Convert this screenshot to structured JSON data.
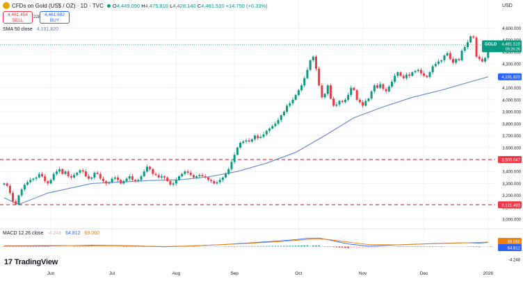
{
  "header": {
    "title": "CFDs on Gold (US$ / OZ) · 1D · TVC",
    "ohlc": {
      "o_label": "O",
      "o": "4,449.090",
      "h_label": "H",
      "h": "4,475.810",
      "l_label": "L",
      "l": "4,428.140",
      "c_label": "C",
      "c": "4,461.510",
      "change": "+14.750 (+0.33%)"
    },
    "sell_price": "4,461.454",
    "sell_label": "SELL",
    "spread": "228",
    "buy_price": "4,461.682",
    "buy_label": "BUY",
    "currency": "USD",
    "brand": "TradingView"
  },
  "indicators": {
    "sma_label": "SMA 50 close",
    "sma_value": "4,191.820",
    "macd_label": "MACD 12 26 close",
    "macd_hist": "-4.248",
    "macd_line": "64.812",
    "macd_signal": "69.060"
  },
  "colors": {
    "up": "#089981",
    "down": "#f23645",
    "sma": "#5b84d4",
    "macd": "#2962ff",
    "signal": "#f57c00",
    "hline": "#f23645"
  },
  "chart_data": {
    "type": "candlestick",
    "symbol": "GOLD",
    "last_price": "4,461.510",
    "countdown": "09:26:26",
    "ylim": [
      2920,
      4660
    ],
    "y_ticks": [
      3000,
      3100,
      3200,
      3300,
      3400,
      3500,
      3600,
      3700,
      3800,
      3900,
      4000,
      4100,
      4200,
      4300,
      4400,
      4500,
      4600
    ],
    "y_tick_labels": [
      "3,000.000",
      "3,100.000",
      "3,200.000",
      "3,300.000",
      "3,400.000",
      "3,500.000",
      "3,600.000",
      "3,700.000",
      "3,800.000",
      "3,900.000",
      "4,000.000",
      "4,100.000",
      "4,200.000",
      "4,300.000",
      "4,400.000",
      "4,500.000",
      "4,600.000"
    ],
    "x_labels": [
      "Jun",
      "Jul",
      "Aug",
      "Sep",
      "Oct",
      "Nov",
      "Dec",
      "2026"
    ],
    "x_label_index": [
      16,
      37,
      59,
      79,
      101,
      123,
      144,
      166
    ],
    "horizontal_lines": [
      {
        "value": 3500.047,
        "label": "3,500.047"
      },
      {
        "value": 3121.493,
        "label": "3,121.493"
      }
    ],
    "sma50": {
      "name": "SMA 50 close",
      "last_label": "4,191.820",
      "points": [
        [
          0,
          3180
        ],
        [
          5,
          3125
        ],
        [
          15,
          3220
        ],
        [
          30,
          3300
        ],
        [
          50,
          3325
        ],
        [
          60,
          3330
        ],
        [
          70,
          3355
        ],
        [
          80,
          3400
        ],
        [
          90,
          3470
        ],
        [
          100,
          3560
        ],
        [
          110,
          3700
        ],
        [
          120,
          3850
        ],
        [
          130,
          3940
        ],
        [
          140,
          4020
        ],
        [
          150,
          4080
        ],
        [
          160,
          4150
        ],
        [
          166,
          4191.82
        ]
      ]
    },
    "closes": [
      3300,
      3280,
      3220,
      3150,
      3125,
      3200,
      3250,
      3290,
      3310,
      3330,
      3340,
      3350,
      3380,
      3360,
      3320,
      3300,
      3330,
      3380,
      3400,
      3420,
      3380,
      3400,
      3360,
      3350,
      3370,
      3390,
      3410,
      3400,
      3360,
      3340,
      3350,
      3390,
      3380,
      3340,
      3320,
      3300,
      3310,
      3340,
      3350,
      3330,
      3300,
      3320,
      3340,
      3360,
      3330,
      3320,
      3330,
      3360,
      3400,
      3440,
      3420,
      3380,
      3370,
      3350,
      3360,
      3350,
      3320,
      3290,
      3300,
      3330,
      3360,
      3380,
      3400,
      3390,
      3370,
      3350,
      3360,
      3370,
      3360,
      3350,
      3330,
      3320,
      3300,
      3310,
      3330,
      3350,
      3380,
      3420,
      3480,
      3540,
      3600,
      3640,
      3650,
      3660,
      3650,
      3670,
      3700,
      3680,
      3690,
      3710,
      3740,
      3760,
      3780,
      3800,
      3830,
      3870,
      3900,
      3950,
      3970,
      4000,
      4040,
      4080,
      4120,
      4180,
      4250,
      4330,
      4360,
      4260,
      4120,
      4020,
      4050,
      4120,
      4010,
      3950,
      3960,
      3990,
      3980,
      4000,
      4040,
      4100,
      4080,
      4000,
      3980,
      3950,
      3990,
      4010,
      4070,
      4120,
      4100,
      4130,
      4090,
      4070,
      4110,
      4150,
      4200,
      4230,
      4200,
      4180,
      4210,
      4200,
      4230,
      4240,
      4250,
      4220,
      4200,
      4190,
      4230,
      4280,
      4300,
      4320,
      4330,
      4370,
      4390,
      4340,
      4310,
      4340,
      4330,
      4410,
      4440,
      4480,
      4530,
      4520,
      4360,
      4340,
      4320,
      4350,
      4420,
      4461.51
    ],
    "macd_panel": {
      "ylim": [
        -140,
        170
      ],
      "macd": [
        [
          0,
          10
        ],
        [
          15,
          8
        ],
        [
          30,
          20
        ],
        [
          45,
          10
        ],
        [
          55,
          -5
        ],
        [
          62,
          5
        ],
        [
          75,
          30
        ],
        [
          85,
          60
        ],
        [
          95,
          90
        ],
        [
          100,
          110
        ],
        [
          104,
          130
        ],
        [
          108,
          135
        ],
        [
          112,
          100
        ],
        [
          118,
          40
        ],
        [
          125,
          5
        ],
        [
          132,
          20
        ],
        [
          140,
          35
        ],
        [
          150,
          50
        ],
        [
          158,
          60
        ],
        [
          163,
          55
        ],
        [
          166,
          64.812
        ]
      ],
      "signal": [
        [
          0,
          12
        ],
        [
          20,
          15
        ],
        [
          40,
          12
        ],
        [
          55,
          0
        ],
        [
          65,
          10
        ],
        [
          80,
          40
        ],
        [
          95,
          80
        ],
        [
          105,
          115
        ],
        [
          110,
          118
        ],
        [
          118,
          70
        ],
        [
          125,
          30
        ],
        [
          135,
          25
        ],
        [
          145,
          40
        ],
        [
          155,
          55
        ],
        [
          160,
          62
        ],
        [
          166,
          69.06
        ]
      ]
    }
  }
}
